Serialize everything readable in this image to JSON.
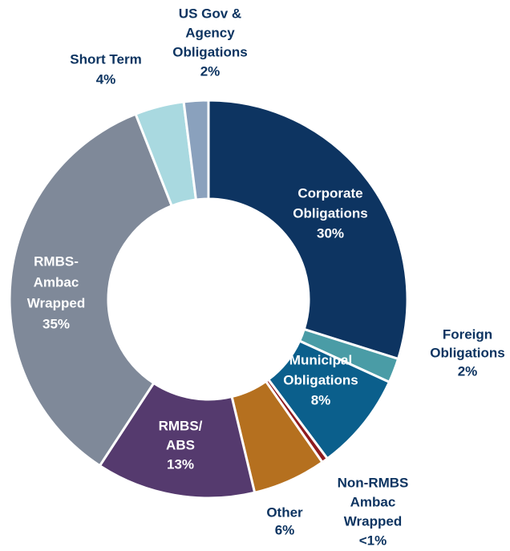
{
  "chart_data": {
    "type": "donut",
    "categories": [
      [
        "Corporate",
        "Obligations"
      ],
      [
        "Foreign",
        "Obligations"
      ],
      [
        "Municipal",
        "Obligations"
      ],
      [
        "Non-RMBS",
        "Ambac",
        "Wrapped"
      ],
      [
        "Other"
      ],
      [
        "RMBS/",
        "ABS"
      ],
      [
        "RMBS-",
        "Ambac",
        "Wrapped"
      ],
      [
        "Short Term"
      ],
      [
        "US Gov &",
        "Agency",
        "Obligations"
      ]
    ],
    "values": [
      30,
      2,
      8,
      0.5,
      6,
      13,
      35,
      4,
      2
    ],
    "value_labels": [
      "30%",
      "2%",
      "8%",
      "<1%",
      "6%",
      "13%",
      "35%",
      "4%",
      "2%"
    ],
    "colors": [
      "#0d3461",
      "#4a9ca6",
      "#0b5f8c",
      "#8e1b1f",
      "#b5701f",
      "#553a6e",
      "#7f8999",
      "#a9d9e0",
      "#8aa1bd"
    ]
  }
}
